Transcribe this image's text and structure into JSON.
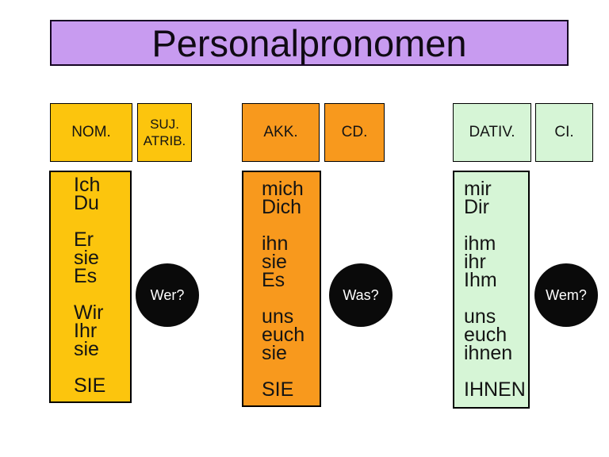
{
  "title": "Personalpronomen",
  "columns": [
    {
      "headers": [
        "NOM.",
        "SUJ.\nATRIB."
      ],
      "pronouns": [
        "Ich",
        "Du",
        "",
        "Er",
        "sie",
        "Es",
        "",
        "Wir",
        "Ihr",
        "sie",
        "",
        "SIE"
      ],
      "question": "Wer?"
    },
    {
      "headers": [
        "AKK.",
        "CD."
      ],
      "pronouns": [
        "mich",
        "Dich",
        "",
        "ihn",
        "sie",
        "Es",
        "",
        "uns",
        "euch",
        "sie",
        "",
        "SIE"
      ],
      "question": "Was?"
    },
    {
      "headers": [
        "DATIV.",
        "CI."
      ],
      "pronouns": [
        "mir",
        "Dir",
        "",
        "ihm",
        "ihr",
        "Ihm",
        "",
        "uns",
        "euch",
        "ihnen",
        "",
        "IHNEN"
      ],
      "question": "Wem?"
    }
  ],
  "colors": {
    "title_bg": "#C89BF0",
    "nominative_bg": "#FCC50D",
    "accusative_bg": "#F8991D",
    "dative_bg": "#D6F5D6",
    "circle_bg": "#0A0A0A",
    "circle_text": "#FFFFFF",
    "text": "#141414"
  }
}
